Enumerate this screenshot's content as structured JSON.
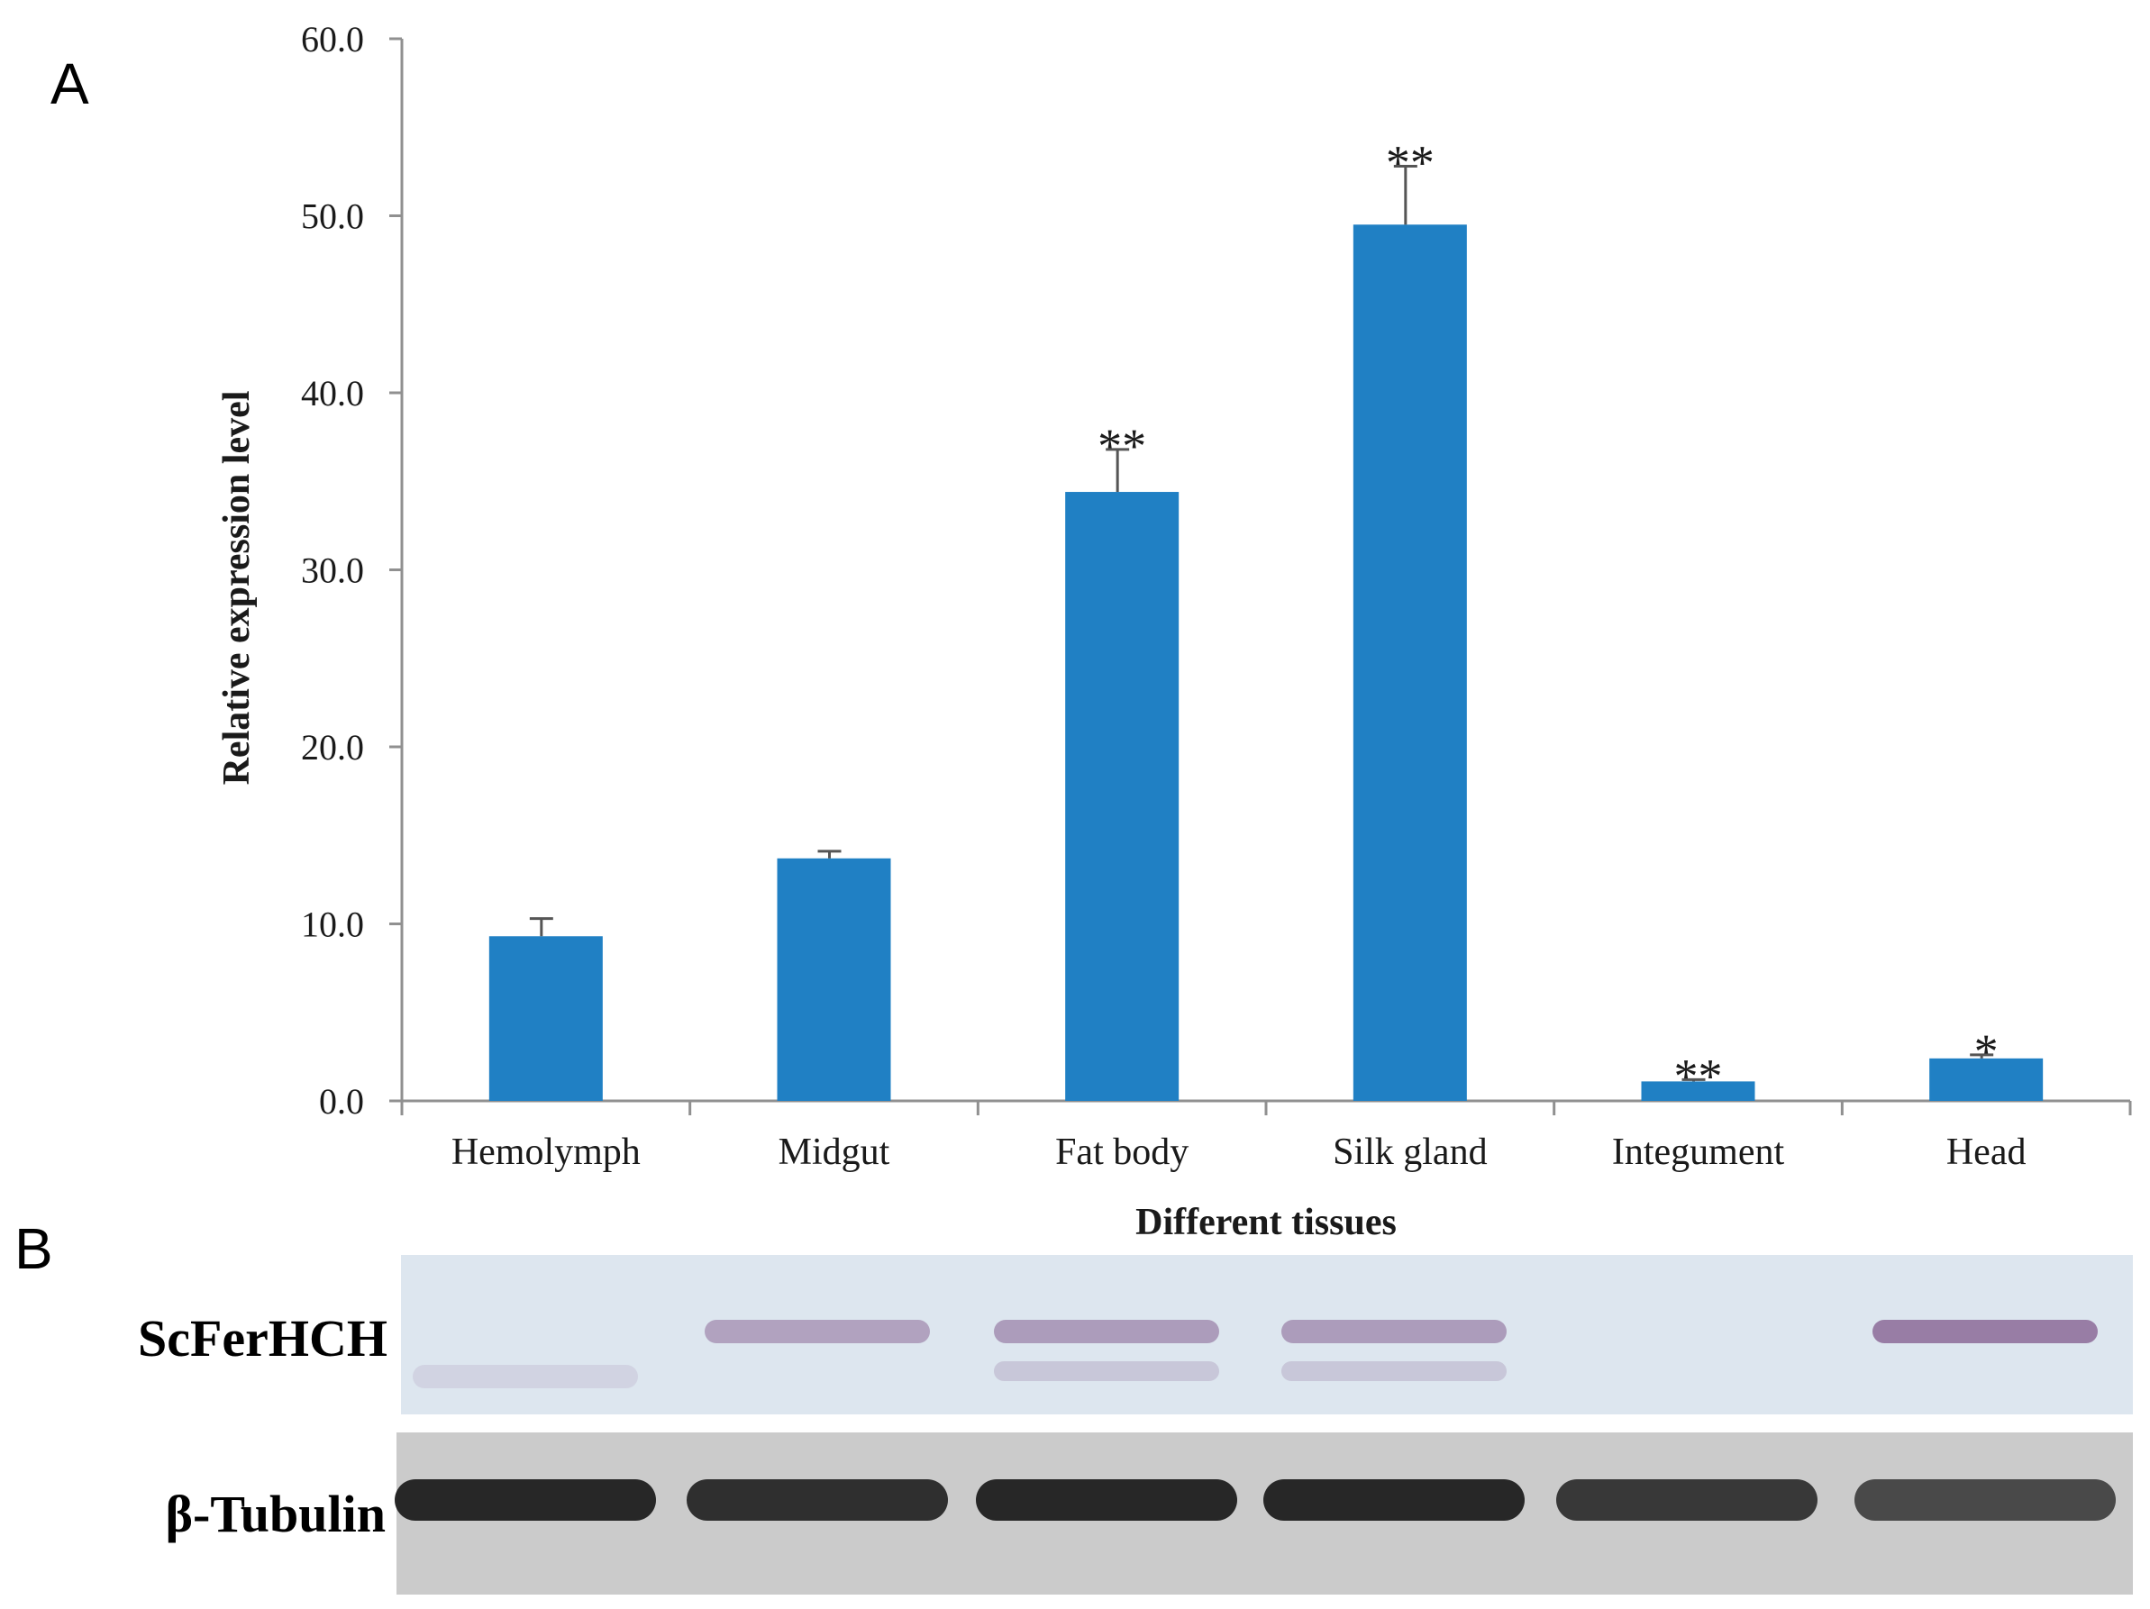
{
  "panel_labels": {
    "a": "A",
    "b": "B"
  },
  "colors": {
    "bar": "#2080C4",
    "axis": "#909090",
    "text": "#1a1a1a",
    "blot_top_bg": "#dde6ef",
    "blot_bottom_bg": "#cbcbcb",
    "band_top": "#8c6a98",
    "band_bottom": "#1e1e1e"
  },
  "chart_data": {
    "type": "bar",
    "categories": [
      "Hemolymph",
      "Midgut",
      "Fat body",
      "Silk gland",
      "Integument",
      "Head"
    ],
    "values": [
      9.3,
      13.7,
      34.4,
      49.5,
      1.1,
      2.4
    ],
    "errors": [
      1.0,
      0.4,
      2.4,
      3.3,
      0.1,
      0.2
    ],
    "significance": [
      "",
      "",
      "**",
      "**",
      "**",
      "*"
    ],
    "xlabel": "Different tissues",
    "ylabel": "Relative expression level",
    "ylim": [
      0,
      60
    ],
    "yticks": [
      "0.0",
      "10.0",
      "20.0",
      "30.0",
      "40.0",
      "50.0",
      "60.0"
    ],
    "grid": false,
    "legend": "none"
  },
  "blot": {
    "rows": [
      {
        "label": "ScFerHCH",
        "bands": [
          0.15,
          0.55,
          0.6,
          0.6,
          0.0,
          0.85
        ]
      },
      {
        "label": "β-Tubulin",
        "bands": [
          0.95,
          0.9,
          0.95,
          0.95,
          0.85,
          0.75
        ]
      }
    ]
  }
}
